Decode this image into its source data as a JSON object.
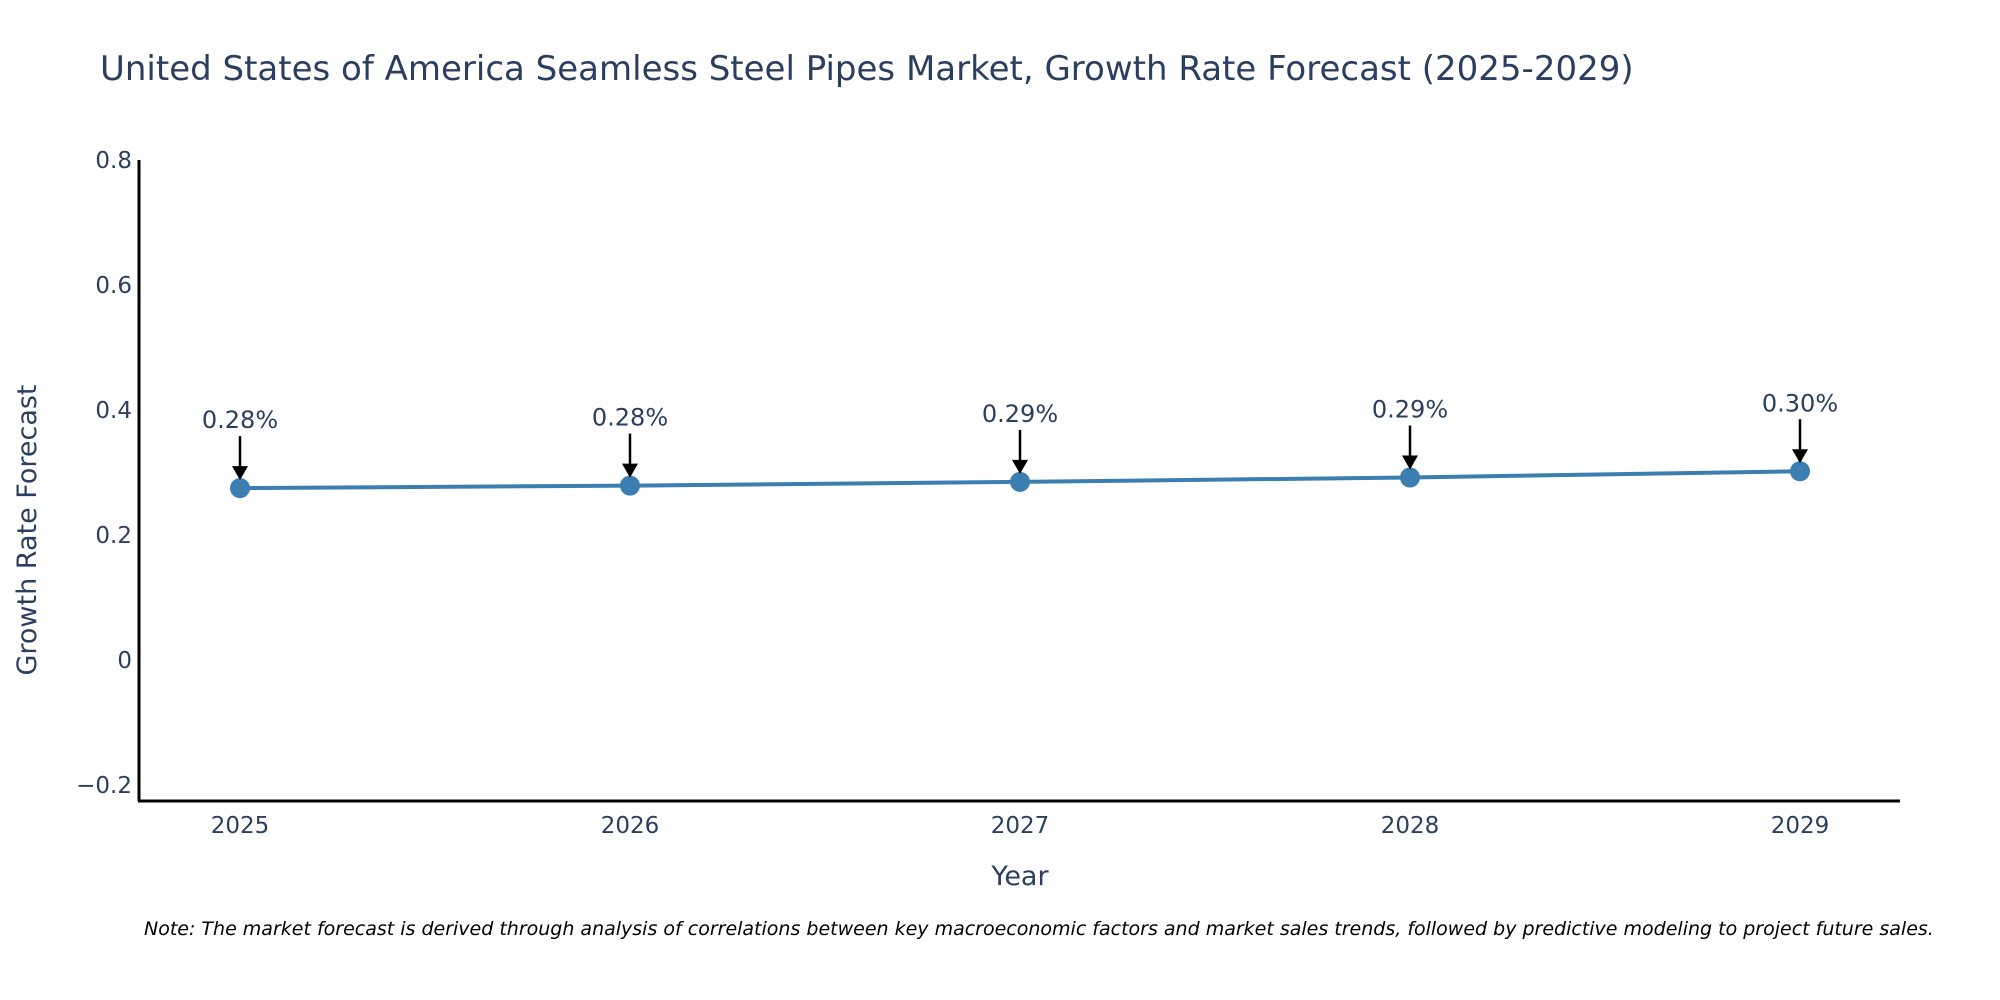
{
  "chart_data": {
    "type": "line",
    "title": "United States of America Seamless Steel Pipes Market, Growth Rate Forecast (2025-2029)",
    "xlabel": "Year",
    "ylabel": "Growth Rate Forecast",
    "categories": [
      "2025",
      "2026",
      "2027",
      "2028",
      "2029"
    ],
    "series": [
      {
        "name": "Growth Rate Forecast",
        "values": [
          0.275,
          0.279,
          0.285,
          0.292,
          0.302
        ]
      }
    ],
    "data_labels": [
      "0.28%",
      "0.28%",
      "0.29%",
      "0.29%",
      "0.30%"
    ],
    "ylim": [
      -0.225,
      0.8
    ],
    "yticks": [
      -0.2,
      0,
      0.2,
      0.4,
      0.6,
      0.8
    ],
    "ytick_labels": [
      "−0.2",
      "0",
      "0.2",
      "0.4",
      "0.6",
      "0.8"
    ],
    "grid": false,
    "colors": {
      "line": "#3d7eb0",
      "marker": "#3d7eb0",
      "arrow": "#000000",
      "text": "#2a3f5f"
    }
  },
  "note": "Note: The market forecast is derived through analysis of correlations between key macroeconomic factors and market sales trends, followed by predictive modeling to project future sales."
}
